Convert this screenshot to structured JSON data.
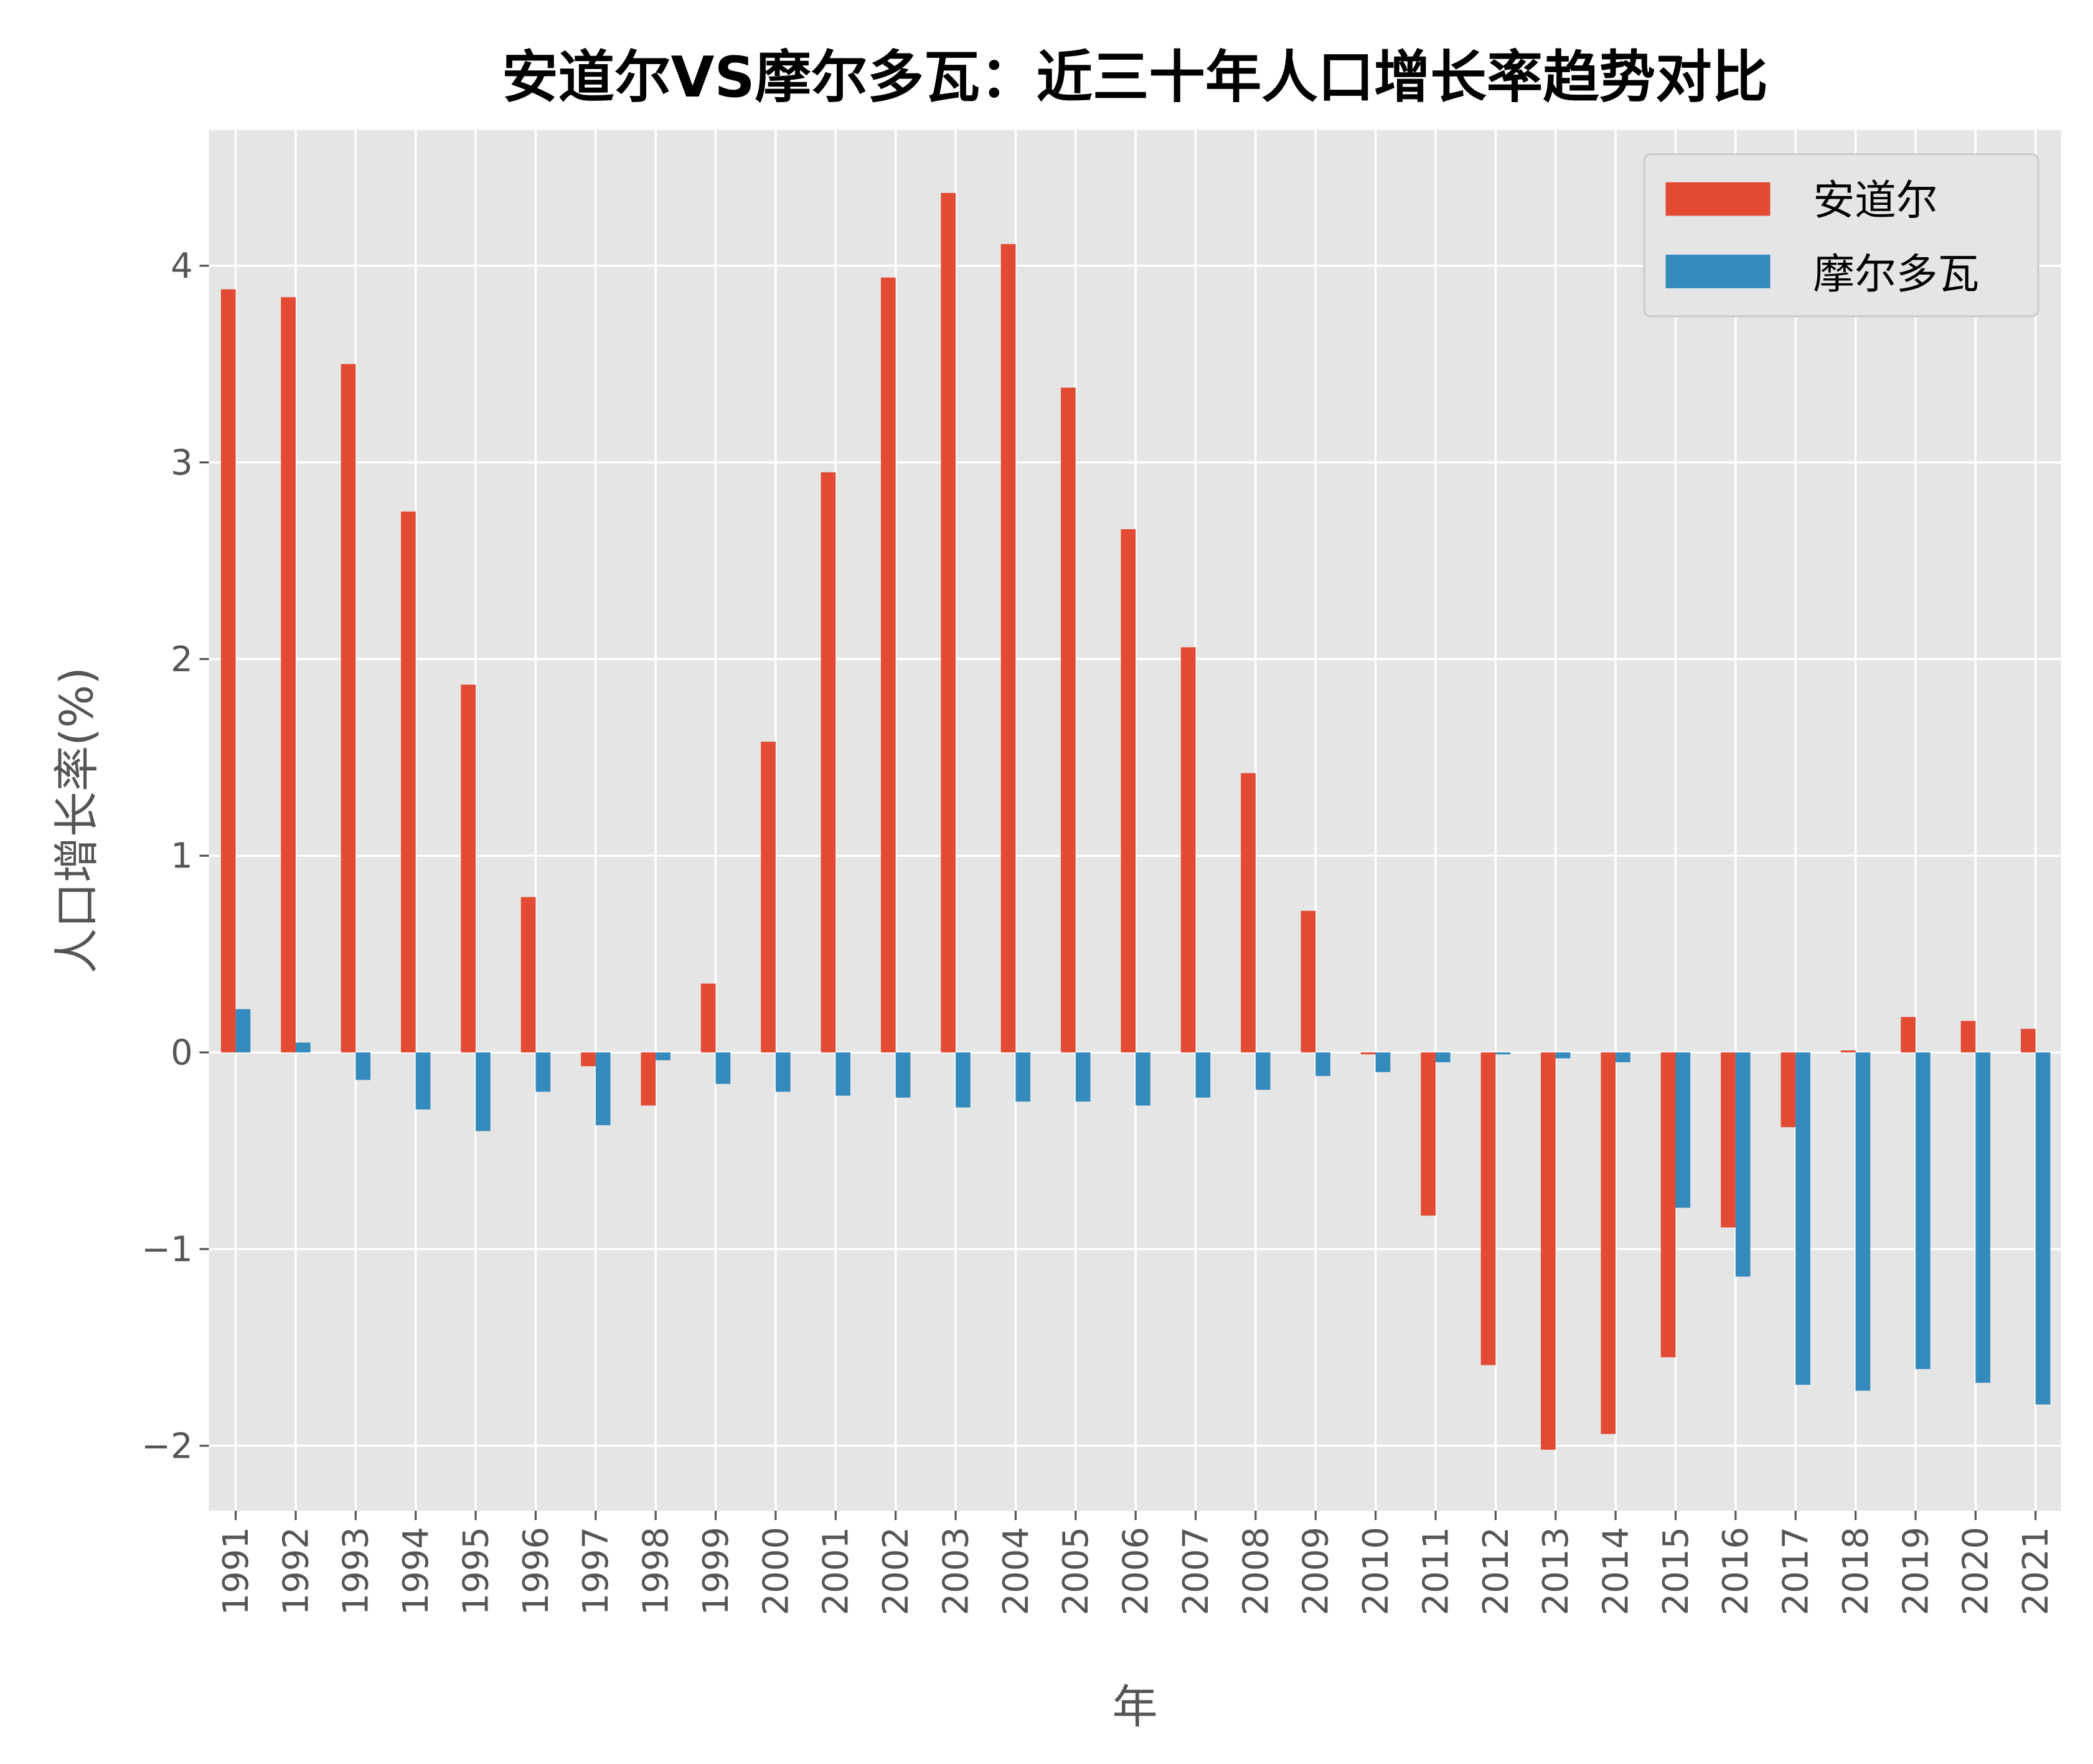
{
  "chart_data": {
    "type": "bar",
    "title": "安道尔VS摩尔多瓦：近三十年人口增长率趋势对比",
    "xlabel": "年",
    "ylabel": "人口增长率(%)",
    "ylim": [
      -2.33,
      4.69
    ],
    "yticks": [
      -2,
      -1,
      0,
      1,
      2,
      3,
      4
    ],
    "ytick_labels": [
      "−2",
      "−1",
      "0",
      "1",
      "2",
      "3",
      "4"
    ],
    "grid": true,
    "legend_position": "top-right",
    "categories": [
      "1991",
      "1992",
      "1993",
      "1994",
      "1995",
      "1996",
      "1997",
      "1998",
      "1999",
      "2000",
      "2001",
      "2002",
      "2003",
      "2004",
      "2005",
      "2006",
      "2007",
      "2008",
      "2009",
      "2010",
      "2011",
      "2012",
      "2013",
      "2014",
      "2015",
      "2016",
      "2017",
      "2018",
      "2019",
      "2020",
      "2021"
    ],
    "series": [
      {
        "name": "安道尔",
        "color": "#E24A33",
        "values": [
          3.88,
          3.84,
          3.5,
          2.75,
          1.87,
          0.79,
          -0.07,
          -0.27,
          0.35,
          1.58,
          2.95,
          3.94,
          4.37,
          4.11,
          3.38,
          2.66,
          2.06,
          1.42,
          0.72,
          -0.01,
          -0.83,
          -1.59,
          -2.02,
          -1.94,
          -1.55,
          -0.89,
          -0.38,
          0.01,
          0.18,
          0.16,
          0.12
        ]
      },
      {
        "name": "摩尔多瓦",
        "color": "#348ABD",
        "values": [
          0.22,
          0.05,
          -0.14,
          -0.29,
          -0.4,
          -0.2,
          -0.37,
          -0.04,
          -0.16,
          -0.2,
          -0.22,
          -0.23,
          -0.28,
          -0.25,
          -0.25,
          -0.27,
          -0.23,
          -0.19,
          -0.12,
          -0.1,
          -0.05,
          -0.01,
          -0.03,
          -0.05,
          -0.79,
          -1.14,
          -1.69,
          -1.72,
          -1.61,
          -1.68,
          -1.79
        ]
      }
    ],
    "colors": {
      "plot_background": "#E5E5E5",
      "grid": "#FFFFFF"
    }
  }
}
